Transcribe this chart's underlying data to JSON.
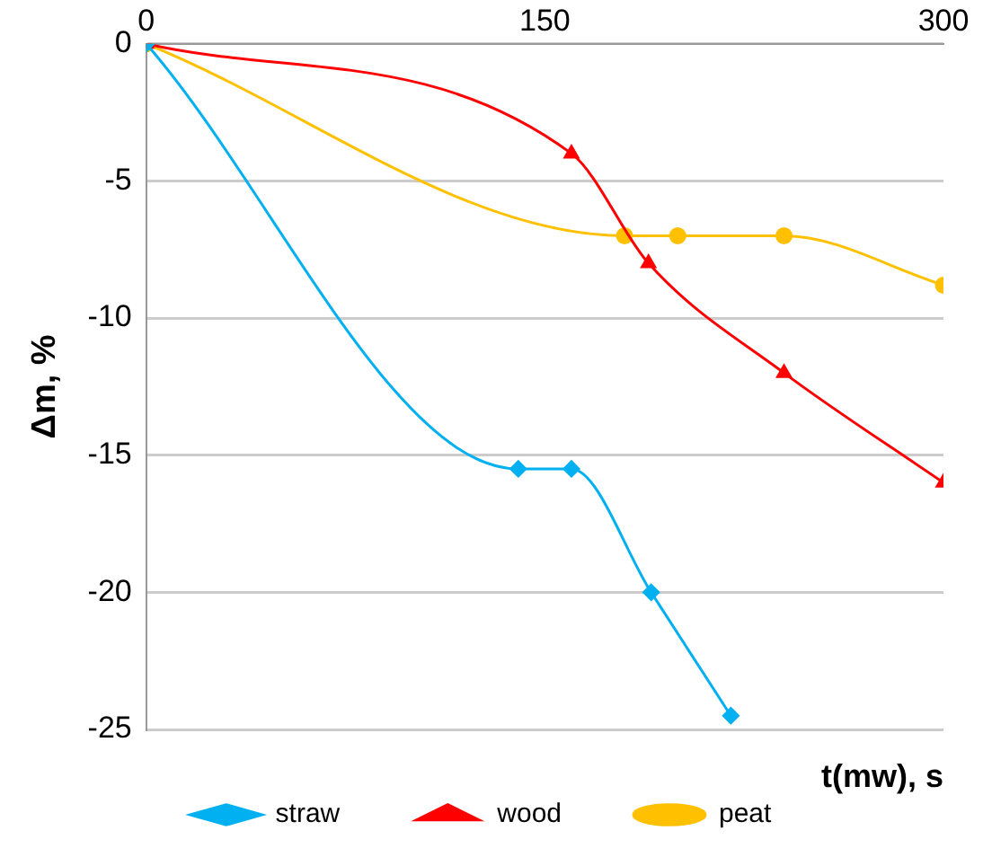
{
  "chart_data": {
    "type": "line",
    "xlabel": "t(mw), s",
    "ylabel": "Δm, %",
    "xlim": [
      0,
      300
    ],
    "xticks": [
      0,
      150,
      300
    ],
    "ylim": [
      -25,
      0
    ],
    "yticks": [
      0,
      -5,
      -10,
      -15,
      -20,
      -25
    ],
    "grid": "y",
    "legend": "bottom",
    "series": [
      {
        "name": "straw",
        "color": "#00b0f0",
        "marker": "diamond",
        "x": [
          0,
          140,
          160,
          190,
          220
        ],
        "values": [
          0,
          -15.5,
          -15.5,
          -20,
          -24.5
        ]
      },
      {
        "name": "wood",
        "color": "#ff0000",
        "marker": "triangle",
        "x": [
          0,
          160,
          189,
          240,
          300
        ],
        "values": [
          0,
          -4,
          -8,
          -12,
          -16
        ]
      },
      {
        "name": "peat",
        "color": "#ffc000",
        "marker": "circle",
        "x": [
          0,
          180,
          200,
          240,
          300
        ],
        "values": [
          0,
          -7,
          -7,
          -7,
          -8.8
        ]
      }
    ]
  }
}
